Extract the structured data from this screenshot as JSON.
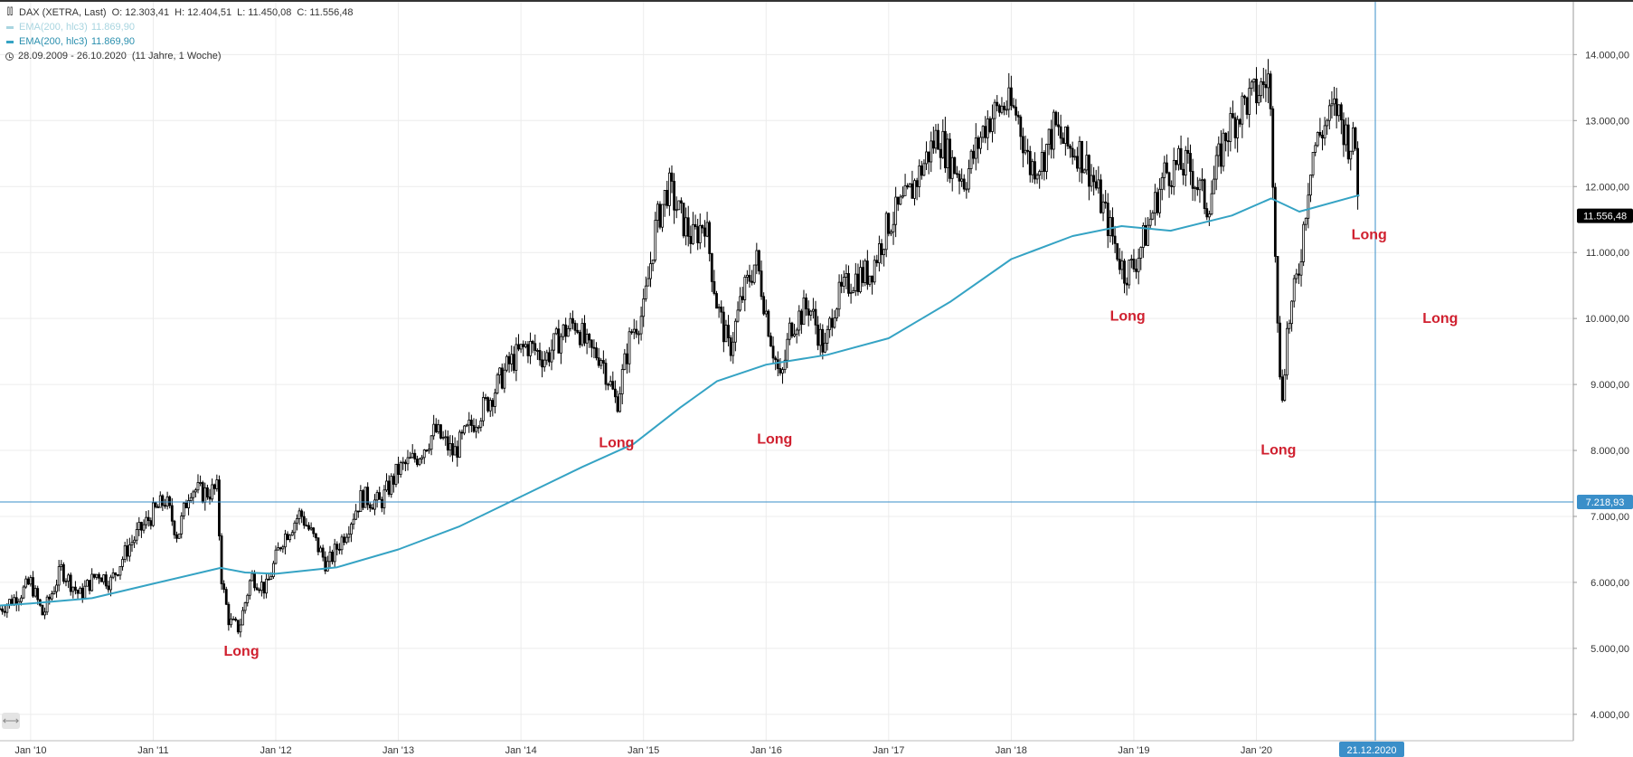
{
  "legend": {
    "symbol_line": "DAX (XETRA, Last)",
    "ohlc": {
      "o_label": "O:",
      "o": "12.303,41",
      "h_label": "H:",
      "h": "12.404,51",
      "l_label": "L:",
      "l": "11.450,08",
      "c_label": "C:",
      "c": "11.556,48"
    },
    "faded_indicator": "EMA(200, hlc3)",
    "faded_value": "11.869,90",
    "ema_indicator": "EMA(200, hlc3)",
    "ema_value": "11.869,90",
    "range_text": "28.09.2009 - 26.10.2020",
    "range_duration": "(11 Jahre, 1 Woche)"
  },
  "colors": {
    "candle": "#000000",
    "ema": "#35a3c4",
    "crosshair": "#3a8fc9",
    "annotation": "#d0202f",
    "grid": "#ececec",
    "price_tag_bg": "#000000",
    "crosshair_tag_bg": "#3a8fc9"
  },
  "axis": {
    "crosshair_price": "7.218,93",
    "crosshair_date": "21.12.2020",
    "last_price": "11.556,48"
  },
  "scroll_icon": "double-arrow-icon",
  "chart_data": {
    "type": "candlestick",
    "title": "",
    "xlabel": "",
    "ylabel": "",
    "ylim": [
      3600,
      14800
    ],
    "x_range": [
      "2009-09-28",
      "2020-10-26"
    ],
    "y_ticks": [
      {
        "value": 4000,
        "label": "4.000,00"
      },
      {
        "value": 5000,
        "label": "5.000,00"
      },
      {
        "value": 6000,
        "label": "6.000,00"
      },
      {
        "value": 7000,
        "label": "7.000,00"
      },
      {
        "value": 8000,
        "label": "8.000,00"
      },
      {
        "value": 9000,
        "label": "9.000,00"
      },
      {
        "value": 10000,
        "label": "10.000,00"
      },
      {
        "value": 11000,
        "label": "11.000,00"
      },
      {
        "value": 12000,
        "label": "12.000,00"
      },
      {
        "value": 13000,
        "label": "13.000,00"
      },
      {
        "value": 14000,
        "label": "14.000,00"
      }
    ],
    "x_ticks": [
      {
        "date": 2010.0,
        "label": "Jan '10"
      },
      {
        "date": 2011.0,
        "label": "Jan '11"
      },
      {
        "date": 2012.0,
        "label": "Jan '12"
      },
      {
        "date": 2013.0,
        "label": "Jan '13"
      },
      {
        "date": 2014.0,
        "label": "Jan '14"
      },
      {
        "date": 2015.0,
        "label": "Jan '15"
      },
      {
        "date": 2016.0,
        "label": "Jan '16"
      },
      {
        "date": 2017.0,
        "label": "Jan '17"
      },
      {
        "date": 2018.0,
        "label": "Jan '18"
      },
      {
        "date": 2019.0,
        "label": "Jan '19"
      },
      {
        "date": 2020.0,
        "label": "Jan '20"
      }
    ],
    "price_path": [
      [
        2009.75,
        5600
      ],
      [
        2009.9,
        5800
      ],
      [
        2010.0,
        6000
      ],
      [
        2010.1,
        5500
      ],
      [
        2010.25,
        6200
      ],
      [
        2010.4,
        5800
      ],
      [
        2010.55,
        6150
      ],
      [
        2010.65,
        6000
      ],
      [
        2010.8,
        6550
      ],
      [
        2011.0,
        7050
      ],
      [
        2011.1,
        7250
      ],
      [
        2011.2,
        6700
      ],
      [
        2011.3,
        7450
      ],
      [
        2011.4,
        7350
      ],
      [
        2011.52,
        7400
      ],
      [
        2011.56,
        6000
      ],
      [
        2011.62,
        5400
      ],
      [
        2011.7,
        5300
      ],
      [
        2011.8,
        6100
      ],
      [
        2011.92,
        5900
      ],
      [
        2012.05,
        6650
      ],
      [
        2012.2,
        7050
      ],
      [
        2012.3,
        6700
      ],
      [
        2012.42,
        6250
      ],
      [
        2012.55,
        6700
      ],
      [
        2012.7,
        7300
      ],
      [
        2012.85,
        7200
      ],
      [
        2013.0,
        7700
      ],
      [
        2013.15,
        7900
      ],
      [
        2013.3,
        8300
      ],
      [
        2013.45,
        7950
      ],
      [
        2013.6,
        8400
      ],
      [
        2013.75,
        8800
      ],
      [
        2013.9,
        9300
      ],
      [
        2014.05,
        9600
      ],
      [
        2014.2,
        9400
      ],
      [
        2014.35,
        9800
      ],
      [
        2014.45,
        9950
      ],
      [
        2014.55,
        9500
      ],
      [
        2014.65,
        9450
      ],
      [
        2014.78,
        8700
      ],
      [
        2014.9,
        9800
      ],
      [
        2015.0,
        10100
      ],
      [
        2015.1,
        11400
      ],
      [
        2015.2,
        12000
      ],
      [
        2015.3,
        11550
      ],
      [
        2015.4,
        11200
      ],
      [
        2015.5,
        11500
      ],
      [
        2015.6,
        10200
      ],
      [
        2015.7,
        9500
      ],
      [
        2015.8,
        10300
      ],
      [
        2015.92,
        10900
      ],
      [
        2016.05,
        9600
      ],
      [
        2016.12,
        9000
      ],
      [
        2016.2,
        9900
      ],
      [
        2016.35,
        10200
      ],
      [
        2016.48,
        9500
      ],
      [
        2016.55,
        10200
      ],
      [
        2016.7,
        10600
      ],
      [
        2016.85,
        10700
      ],
      [
        2017.0,
        11450
      ],
      [
        2017.15,
        11800
      ],
      [
        2017.3,
        12400
      ],
      [
        2017.4,
        12800
      ],
      [
        2017.5,
        12400
      ],
      [
        2017.62,
        12100
      ],
      [
        2017.8,
        13000
      ],
      [
        2017.95,
        13250
      ],
      [
        2018.05,
        13100
      ],
      [
        2018.15,
        12300
      ],
      [
        2018.25,
        12400
      ],
      [
        2018.35,
        12900
      ],
      [
        2018.45,
        12600
      ],
      [
        2018.55,
        12550
      ],
      [
        2018.65,
        12200
      ],
      [
        2018.78,
        11500
      ],
      [
        2018.92,
        10700
      ],
      [
        2019.0,
        10800
      ],
      [
        2019.1,
        11300
      ],
      [
        2019.25,
        12200
      ],
      [
        2019.35,
        12300
      ],
      [
        2019.45,
        12300
      ],
      [
        2019.6,
        11700
      ],
      [
        2019.75,
        12800
      ],
      [
        2019.9,
        13250
      ],
      [
        2020.0,
        13400
      ],
      [
        2020.1,
        13650
      ],
      [
        2020.13,
        12500
      ],
      [
        2020.2,
        8600
      ],
      [
        2020.25,
        9800
      ],
      [
        2020.35,
        10800
      ],
      [
        2020.45,
        12500
      ],
      [
        2020.55,
        12900
      ],
      [
        2020.65,
        13200
      ],
      [
        2020.75,
        12700
      ],
      [
        2020.81,
        12600
      ],
      [
        2020.84,
        11556
      ]
    ],
    "ema": {
      "name": "EMA(200, hlc3)",
      "points": [
        [
          2009.75,
          5650
        ],
        [
          2010.0,
          5680
        ],
        [
          2010.5,
          5760
        ],
        [
          2011.0,
          5980
        ],
        [
          2011.55,
          6220
        ],
        [
          2011.75,
          6150
        ],
        [
          2012.0,
          6130
        ],
        [
          2012.5,
          6230
        ],
        [
          2013.0,
          6500
        ],
        [
          2013.5,
          6850
        ],
        [
          2014.0,
          7300
        ],
        [
          2014.5,
          7750
        ],
        [
          2014.92,
          8100
        ],
        [
          2015.3,
          8650
        ],
        [
          2015.6,
          9050
        ],
        [
          2016.0,
          9300
        ],
        [
          2016.5,
          9450
        ],
        [
          2017.0,
          9700
        ],
        [
          2017.5,
          10250
        ],
        [
          2018.0,
          10900
        ],
        [
          2018.5,
          11250
        ],
        [
          2018.9,
          11400
        ],
        [
          2019.3,
          11330
        ],
        [
          2019.8,
          11560
        ],
        [
          2020.12,
          11820
        ],
        [
          2020.35,
          11620
        ],
        [
          2020.84,
          11870
        ]
      ]
    },
    "annotations": [
      {
        "text": "Long",
        "date": 2011.72,
        "price": 4890
      },
      {
        "text": "Long",
        "date": 2014.78,
        "price": 8050
      },
      {
        "text": "Long",
        "date": 2016.07,
        "price": 8100
      },
      {
        "text": "Long",
        "date": 2018.95,
        "price": 9970
      },
      {
        "text": "Long",
        "date": 2020.18,
        "price": 7940
      },
      {
        "text": "Long",
        "date": 2020.92,
        "price": 11200
      },
      {
        "text": "Long",
        "date": 2021.5,
        "price": 9930
      }
    ],
    "crosshair": {
      "date": 2020.97,
      "price": 7218.93
    },
    "last_close": 11556.48,
    "grid": true
  }
}
